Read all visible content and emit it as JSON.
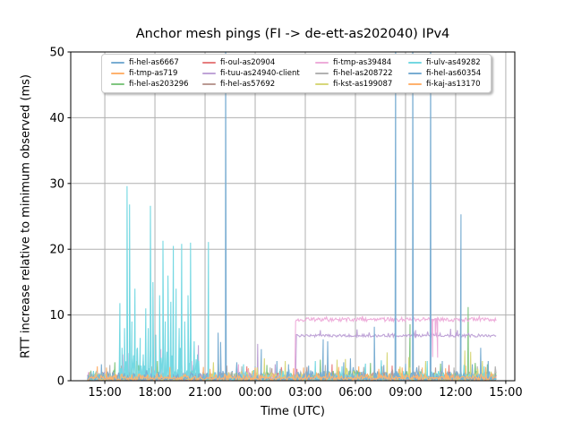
{
  "chart_data": {
    "type": "line",
    "title": "Anchor mesh pings (FI -> de-ett-as202040) IPv4",
    "xlabel": "Time (UTC)",
    "ylabel": "RTT increase relative to minimum observed (ms)",
    "ylim": [
      0,
      50
    ],
    "yticks": [
      0,
      10,
      20,
      30,
      40,
      50
    ],
    "xtick_hours": [
      15,
      18,
      21,
      24,
      27,
      30,
      33,
      36,
      39
    ],
    "xtick_labels": [
      "15:00",
      "18:00",
      "21:00",
      "00:00",
      "03:00",
      "06:00",
      "09:00",
      "12:00",
      "15:00"
    ],
    "x_axis_range_hours": [
      12.96,
      39.54
    ],
    "data_span_hours": [
      13.97,
      38.42
    ],
    "grid": true,
    "grid_color": "#b0b0b0",
    "axis_color": "#000000",
    "legend_position": "upper center",
    "legend_columns": 4,
    "series": [
      {
        "name": "fi-hel-as6667",
        "color": "#79add2",
        "noise_amp": 1.3,
        "dense": false,
        "spikes": [
          [
            14.8,
            2.5
          ],
          [
            17.3,
            3.0
          ],
          [
            19.05,
            3.2
          ],
          [
            20.3,
            2.4
          ],
          [
            22.9,
            2.8
          ],
          [
            24.0,
            2.2
          ],
          [
            25.3,
            3.0
          ],
          [
            27.2,
            2.3
          ],
          [
            29.7,
            3.4
          ],
          [
            31.7,
            2.4
          ],
          [
            33.0,
            2.6
          ],
          [
            35.2,
            3.0
          ],
          [
            37.0,
            2.5
          ]
        ]
      },
      {
        "name": "fi-tmp-as719",
        "color": "#ffb26e",
        "noise_amp": 0.9,
        "dense": true,
        "spikes": [
          [
            14.55,
            2.2
          ],
          [
            16.6,
            2.0
          ],
          [
            18.0,
            1.8
          ],
          [
            20.9,
            2.1
          ],
          [
            23.6,
            1.9
          ],
          [
            26.9,
            2.0
          ],
          [
            30.2,
            2.2
          ],
          [
            32.6,
            1.8
          ],
          [
            34.0,
            2.0
          ],
          [
            36.6,
            2.3
          ]
        ]
      },
      {
        "name": "fi-hel-as203296",
        "color": "#80c680",
        "noise_amp": 1.3,
        "dense": false,
        "spikes": [
          [
            15.6,
            2.8
          ],
          [
            18.15,
            3.0
          ],
          [
            21.8,
            2.6
          ],
          [
            24.7,
            2.4
          ],
          [
            27.9,
            3.2
          ],
          [
            30.9,
            2.7
          ],
          [
            33.27,
            8.6
          ],
          [
            35.1,
            2.6
          ],
          [
            36.75,
            11.2
          ],
          [
            37.9,
            2.5
          ]
        ]
      },
      {
        "name": "fi-oul-as20904",
        "color": "#e67d7e",
        "noise_amp": 1.1,
        "dense": false,
        "spikes": [
          [
            16.0,
            2.3
          ],
          [
            19.8,
            2.4
          ],
          [
            23.5,
            2.2
          ],
          [
            26.5,
            1.8
          ],
          [
            28.6,
            2.5
          ],
          [
            32.2,
            2.3
          ],
          [
            35.6,
            2.4
          ],
          [
            37.3,
            1.9
          ]
        ]
      },
      {
        "name": "fi-tuu-as24940-client",
        "color": "#bfa4d7",
        "noise_amp": 1.2,
        "dense": false,
        "spikes": [
          [
            16.45,
            4.2
          ],
          [
            20.6,
            5.4
          ],
          [
            24.15,
            5.6
          ],
          [
            25.2,
            2.5
          ]
        ],
        "step": {
          "from": 26.45,
          "level": 6.85,
          "jitter": 0.22,
          "events": [
            [
              27.9,
              7.7
            ],
            [
              30.1,
              7.8
            ],
            [
              33.6,
              7.7
            ],
            [
              35.7,
              7.9
            ],
            [
              36.1,
              7.7
            ]
          ]
        }
      },
      {
        "name": "fi-hel-as57692",
        "color": "#ba9a93",
        "noise_amp": 1.0,
        "dense": false,
        "spikes": [
          [
            17.8,
            2.2
          ],
          [
            22.3,
            2.3
          ],
          [
            25.0,
            1.9
          ],
          [
            27.1,
            2.1
          ],
          [
            31.6,
            2.2
          ],
          [
            34.8,
            2.0
          ],
          [
            36.3,
            2.0
          ]
        ]
      },
      {
        "name": "fi-tmp-as39484",
        "color": "#eeadda",
        "noise_amp": 1.1,
        "dense": false,
        "spikes": [
          [
            16.08,
            4.0
          ],
          [
            18.35,
            4.8
          ],
          [
            20.2,
            3.0
          ],
          [
            23.0,
            2.5
          ]
        ],
        "step": {
          "from": 26.42,
          "level": 9.3,
          "jitter": 0.3,
          "events": [
            [
              34.62,
              3.6
            ],
            [
              34.78,
              6.8
            ],
            [
              34.92,
              3.5
            ]
          ]
        }
      },
      {
        "name": "fi-hel-as208722",
        "color": "#b2b2b2",
        "noise_amp": 1.2,
        "dense": false,
        "spikes": [
          [
            15.3,
            2.4
          ],
          [
            19.5,
            2.5
          ],
          [
            23.2,
            2.2
          ],
          [
            24.9,
            2.0
          ],
          [
            28.2,
            2.4
          ],
          [
            30.5,
            2.1
          ],
          [
            33.8,
            2.3
          ],
          [
            35.9,
            2.0
          ],
          [
            37.3,
            2.2
          ]
        ]
      },
      {
        "name": "fi-kst-as199087",
        "color": "#d7d77a",
        "noise_amp": 1.3,
        "dense": false,
        "spikes": [
          [
            16.9,
            3.0
          ],
          [
            18.6,
            3.4
          ],
          [
            21.5,
            2.8
          ],
          [
            24.55,
            3.4
          ],
          [
            25.8,
            3.0
          ],
          [
            28.9,
            3.2
          ],
          [
            29.4,
            3.3
          ],
          [
            31.9,
            4.3
          ],
          [
            33.2,
            3.6
          ],
          [
            34.2,
            3.0
          ],
          [
            36.55,
            4.6
          ],
          [
            36.9,
            4.4
          ],
          [
            37.6,
            3.0
          ]
        ]
      },
      {
        "name": "fi-ulv-as49282",
        "color": "#74d8e2",
        "noise_amp": 1.2,
        "dense": false,
        "burst": {
          "from": 15.85,
          "to": 20.65,
          "base": 0.8,
          "amp": 6.0
        },
        "spikes": [
          [
            15.9,
            11.8
          ],
          [
            16.03,
            5.0
          ],
          [
            16.18,
            8.0
          ],
          [
            16.33,
            29.6
          ],
          [
            16.48,
            26.8
          ],
          [
            16.62,
            9.0
          ],
          [
            16.8,
            14.0
          ],
          [
            16.95,
            5.0
          ],
          [
            17.12,
            6.5
          ],
          [
            17.3,
            4.0
          ],
          [
            17.45,
            11.0
          ],
          [
            17.6,
            8.0
          ],
          [
            17.73,
            26.6
          ],
          [
            17.88,
            15.0
          ],
          [
            18.05,
            7.0
          ],
          [
            18.28,
            13.0
          ],
          [
            18.48,
            21.3
          ],
          [
            18.62,
            9.0
          ],
          [
            18.78,
            16.0
          ],
          [
            18.95,
            12.0
          ],
          [
            19.1,
            20.5
          ],
          [
            19.27,
            14.0
          ],
          [
            19.45,
            8.0
          ],
          [
            19.6,
            20.8
          ],
          [
            19.78,
            9.0
          ],
          [
            19.98,
            13.0
          ],
          [
            20.13,
            21.0
          ],
          [
            20.35,
            6.0
          ],
          [
            20.55,
            4.0
          ],
          [
            21.2,
            21.1
          ],
          [
            23.3,
            2.5
          ],
          [
            25.5,
            1.8
          ],
          [
            27.6,
            3.0
          ],
          [
            29.2,
            2.2
          ],
          [
            30.6,
            2.6
          ],
          [
            31.55,
            3.1
          ],
          [
            34.3,
            3.0
          ],
          [
            36.5,
            2.4
          ],
          [
            37.7,
            2.2
          ]
        ]
      },
      {
        "name": "fi-hel-as60354",
        "color": "#79add2",
        "noise_amp": 1.2,
        "dense": false,
        "spikes": [
          [
            21.78,
            7.3
          ],
          [
            21.93,
            5.9
          ],
          [
            22.23,
            55
          ],
          [
            24.37,
            4.8
          ],
          [
            26.0,
            2.5
          ],
          [
            28.07,
            6.3
          ],
          [
            28.34,
            6.0
          ],
          [
            29.3,
            2.8
          ],
          [
            31.13,
            8.2
          ],
          [
            32.41,
            55
          ],
          [
            33.43,
            55
          ],
          [
            34.5,
            55
          ],
          [
            36.32,
            25.3
          ],
          [
            37.5,
            5.0
          ],
          [
            37.95,
            3.0
          ]
        ]
      },
      {
        "name": "fi-kaj-as13170",
        "color": "#ffb26e",
        "noise_amp": 0.85,
        "dense": true,
        "spikes": [
          [
            15.1,
            2.0
          ],
          [
            18.9,
            2.1
          ],
          [
            21.3,
            1.8
          ],
          [
            24.0,
            2.0
          ],
          [
            26.3,
            1.9
          ],
          [
            29.0,
            2.1
          ],
          [
            31.4,
            1.8
          ],
          [
            32.8,
            2.0
          ],
          [
            35.4,
            1.9
          ],
          [
            37.8,
            2.1
          ]
        ]
      }
    ]
  }
}
